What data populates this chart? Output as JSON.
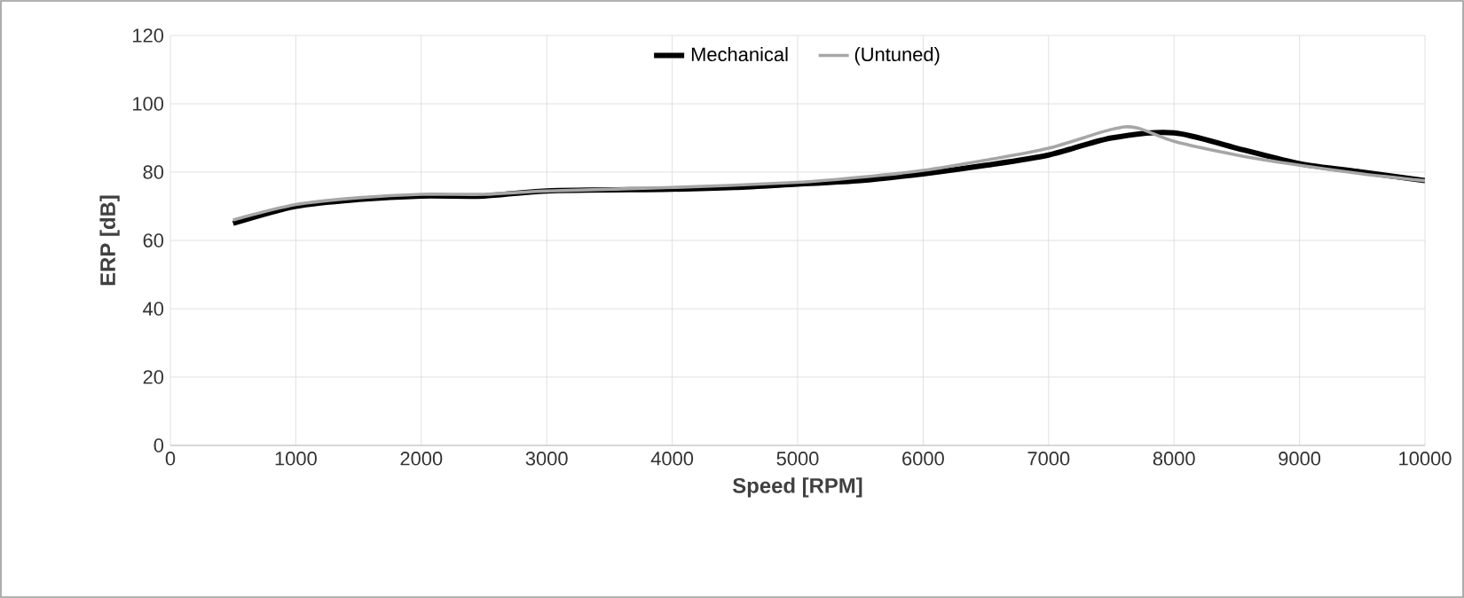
{
  "chart_data": {
    "type": "line",
    "xlabel": "Speed [RPM]",
    "ylabel": "ERP [dB]",
    "xlim": [
      0,
      10000
    ],
    "ylim": [
      0,
      120
    ],
    "xticks": [
      0,
      1000,
      2000,
      3000,
      4000,
      5000,
      6000,
      7000,
      8000,
      9000,
      10000
    ],
    "yticks": [
      0,
      20,
      40,
      60,
      80,
      100,
      120
    ],
    "grid": true,
    "legend": "top",
    "marker": "none",
    "line_style": "solid",
    "series": [
      {
        "name": "Mechanical",
        "color": "#000000",
        "x": [
          500,
          1000,
          1500,
          2000,
          2500,
          3000,
          4000,
          4500,
          5000,
          5500,
          6000,
          6500,
          7000,
          7500,
          8000,
          8500,
          9000,
          9500,
          10000
        ],
        "values": [
          65,
          70,
          72,
          73,
          73,
          74.5,
          75,
          75.5,
          76.5,
          77.5,
          79.5,
          82,
          85,
          90,
          91.5,
          87,
          82.5,
          80,
          77.5
        ]
      },
      {
        "name": "(Untuned)",
        "color": "#a6a6a6",
        "x": [
          500,
          1000,
          1500,
          2000,
          2500,
          3000,
          4000,
          5000,
          5500,
          6000,
          6500,
          7000,
          7500,
          7700,
          8000,
          8500,
          9000,
          9500,
          10000
        ],
        "values": [
          66,
          70.5,
          72.5,
          73.5,
          73.5,
          74.5,
          75.5,
          77,
          78.5,
          80.5,
          83.5,
          87,
          92.5,
          93,
          89,
          85,
          82,
          79.5,
          77.5
        ]
      }
    ]
  }
}
